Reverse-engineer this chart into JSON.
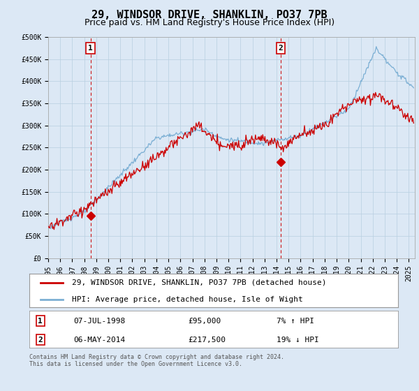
{
  "title": "29, WINDSOR DRIVE, SHANKLIN, PO37 7PB",
  "subtitle": "Price paid vs. HM Land Registry's House Price Index (HPI)",
  "background_color": "#dce8f5",
  "plot_bg_color": "#dce8f5",
  "ylim": [
    0,
    500000
  ],
  "yticks": [
    0,
    50000,
    100000,
    150000,
    200000,
    250000,
    300000,
    350000,
    400000,
    450000,
    500000
  ],
  "ytick_labels": [
    "£0",
    "£50K",
    "£100K",
    "£150K",
    "£200K",
    "£250K",
    "£300K",
    "£350K",
    "£400K",
    "£450K",
    "£500K"
  ],
  "xlim_start": 1995.0,
  "xlim_end": 2025.5,
  "xticks": [
    1995,
    1996,
    1997,
    1998,
    1999,
    2000,
    2001,
    2002,
    2003,
    2004,
    2005,
    2006,
    2007,
    2008,
    2009,
    2010,
    2011,
    2012,
    2013,
    2014,
    2015,
    2016,
    2017,
    2018,
    2019,
    2020,
    2021,
    2022,
    2023,
    2024,
    2025
  ],
  "hpi_color": "#7bafd4",
  "price_color": "#cc0000",
  "marker_color": "#cc0000",
  "sale1_x": 1998.52,
  "sale1_y": 95000,
  "sale1_label": "1",
  "sale1_date": "07-JUL-1998",
  "sale1_price": "£95,000",
  "sale1_hpi": "7% ↑ HPI",
  "sale2_x": 2014.35,
  "sale2_y": 217500,
  "sale2_label": "2",
  "sale2_date": "06-MAY-2014",
  "sale2_price": "£217,500",
  "sale2_hpi": "19% ↓ HPI",
  "vline_color": "#cc0000",
  "legend_label_red": "29, WINDSOR DRIVE, SHANKLIN, PO37 7PB (detached house)",
  "legend_label_blue": "HPI: Average price, detached house, Isle of Wight",
  "footer": "Contains HM Land Registry data © Crown copyright and database right 2024.\nThis data is licensed under the Open Government Licence v3.0.",
  "grid_color": "#b8cfe0",
  "title_fontsize": 11,
  "subtitle_fontsize": 9,
  "tick_fontsize": 7,
  "legend_fontsize": 8,
  "info_fontsize": 8
}
